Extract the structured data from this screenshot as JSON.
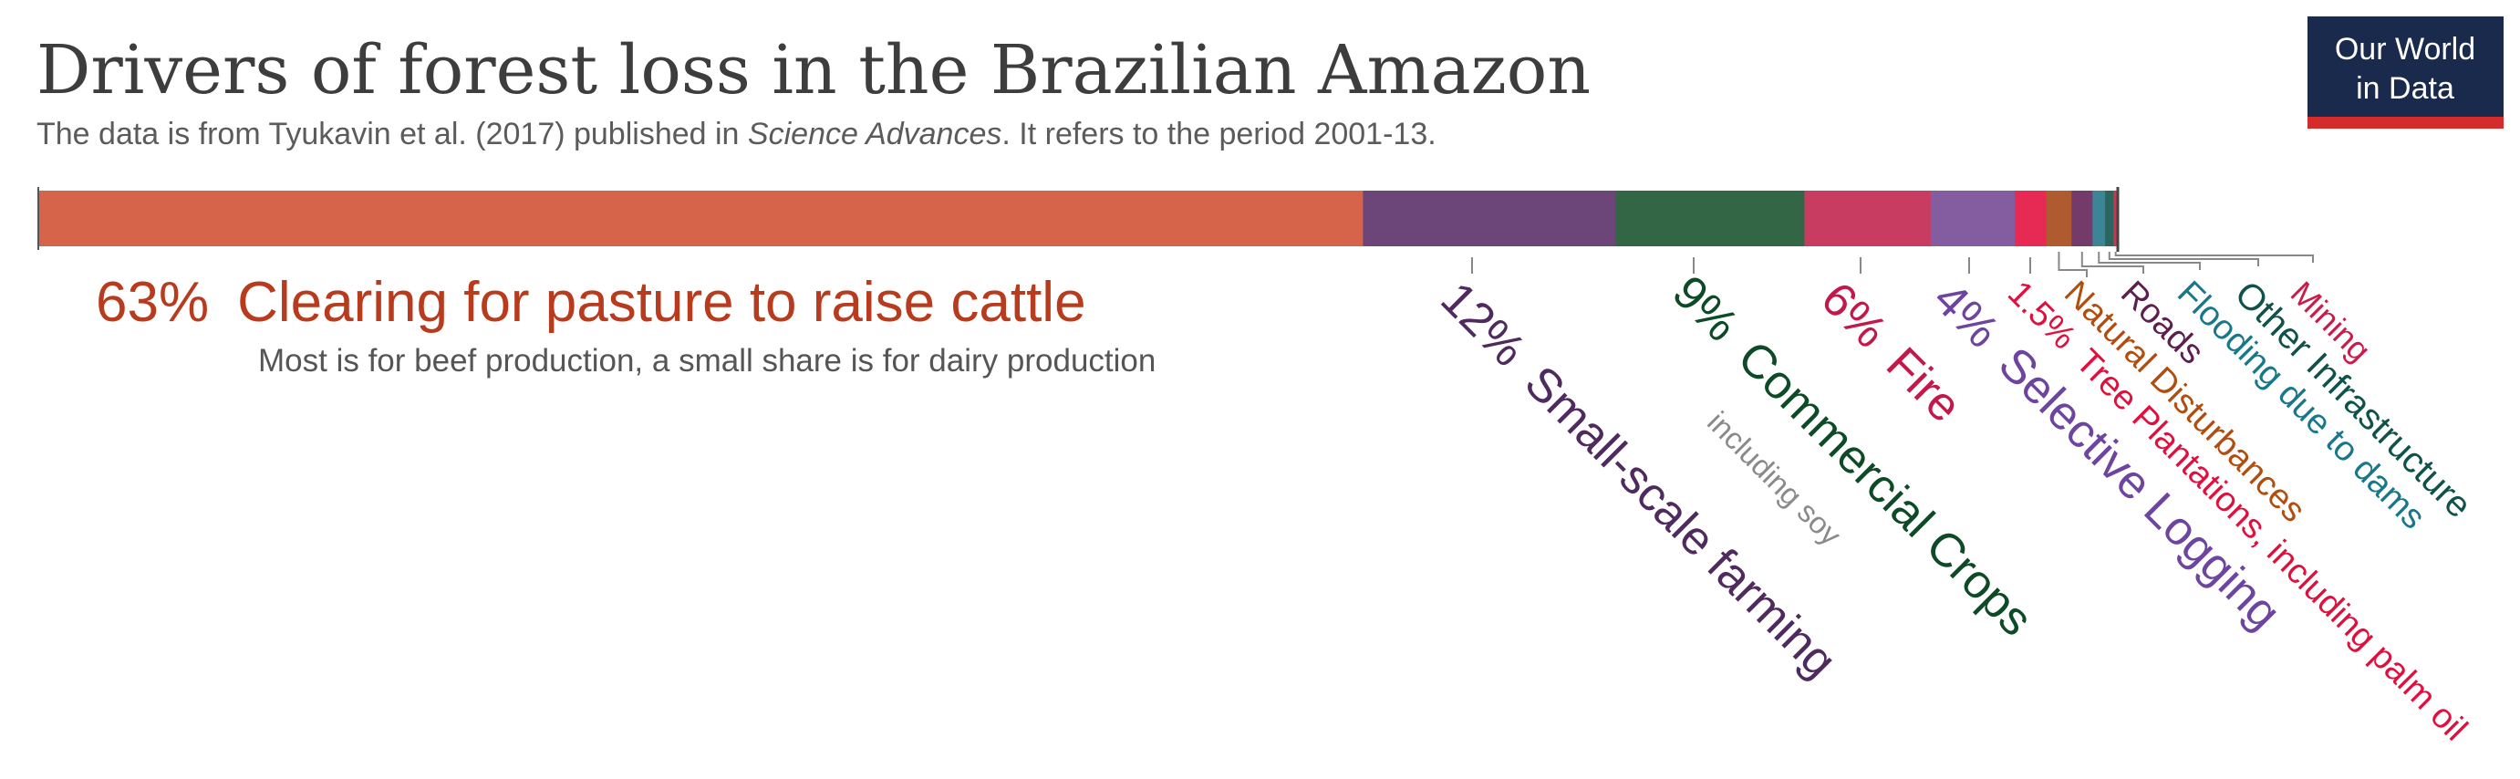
{
  "chart_data": {
    "type": "bar",
    "orientation": "horizontal-stacked",
    "title": "Drivers of forest loss in the Brazilian Amazon",
    "subtitle_parts": [
      "The data is from Tyukavin et al. (2017) published in ",
      "Science Advances",
      ". It refers to the period 2001-13."
    ],
    "unit": "%",
    "segments": [
      {
        "name": "Clearing for pasture to raise cattle",
        "pct_label": "63%",
        "value": 63,
        "color": "#d5644a",
        "label_color": "#b83b1e",
        "note": "Most is for beef production, a small share is for dairy production"
      },
      {
        "name": "Small-scale farming",
        "pct_label": "12%",
        "value": 12,
        "color": "#6c4679",
        "label_color": "#4f2a5f"
      },
      {
        "name": "Commercial Crops",
        "pct_label": "9%",
        "value": 9,
        "color": "#336645",
        "label_color": "#0d4a26",
        "note": "including soy"
      },
      {
        "name": "Fire",
        "pct_label": "6%",
        "value": 6,
        "color": "#c93c62",
        "label_color": "#c4174a"
      },
      {
        "name": "Selective Logging",
        "pct_label": "4%",
        "value": 4,
        "color": "#835da0",
        "label_color": "#6d44a0"
      },
      {
        "name": "Tree Plantations, including palm oil",
        "pct_label": "1.5%",
        "value": 1.5,
        "color": "#e72a54",
        "label_color": "#e0103e"
      },
      {
        "name": "Natural Disturbances",
        "pct_label": "",
        "value": 1.2,
        "color": "#b05a2f",
        "label_color": "#b04d0f"
      },
      {
        "name": "Roads",
        "pct_label": "",
        "value": 1.0,
        "color": "#743a6a",
        "label_color": "#5d1f4f"
      },
      {
        "name": "Flooding due to dams",
        "pct_label": "",
        "value": 0.6,
        "color": "#3b8596",
        "label_color": "#18788a"
      },
      {
        "name": "Other Infrastructure",
        "pct_label": "",
        "value": 0.4,
        "color": "#2a6560",
        "label_color": "#0f524a"
      },
      {
        "name": "Mining",
        "pct_label": "",
        "value": 0.2,
        "color": "#c9384f",
        "label_color": "#c81d4a"
      }
    ]
  },
  "logo": {
    "line1": "Our World",
    "line2": "in Data",
    "bg": "#1a2a4c",
    "accent": "#d42b2b"
  }
}
